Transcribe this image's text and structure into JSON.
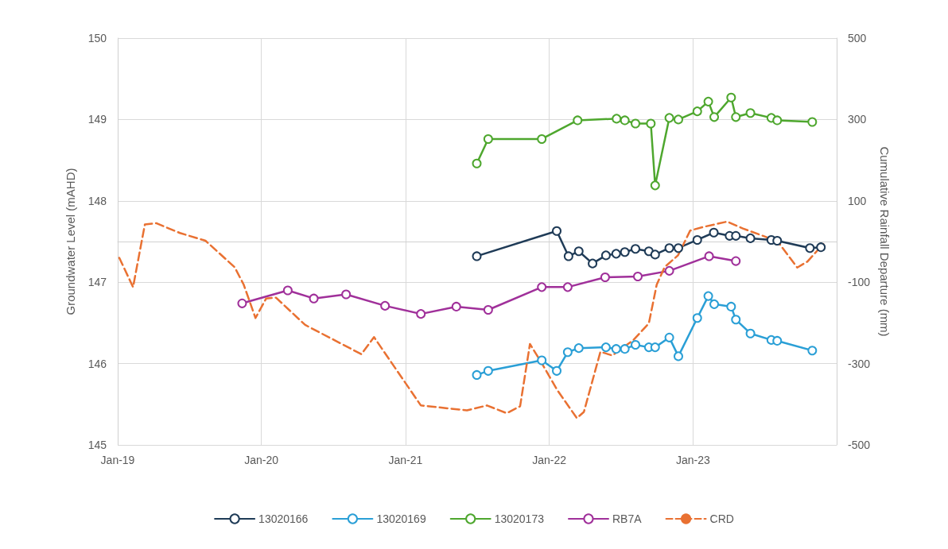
{
  "chart_data": {
    "type": "line",
    "ylabel": "Groundwater Level (mAHD)",
    "y2label": "Cumulative Rainfall Departure (mm)",
    "xlim": [
      "2019-01-01",
      "2024-01-01"
    ],
    "xticks": [
      {
        "value": "2019-01-01",
        "label": "Jan-19"
      },
      {
        "value": "2020-01-01",
        "label": "Jan-20"
      },
      {
        "value": "2021-01-01",
        "label": "Jan-21"
      },
      {
        "value": "2022-01-01",
        "label": "Jan-22"
      },
      {
        "value": "2023-01-01",
        "label": "Jan-23"
      }
    ],
    "ylim": [
      145,
      150
    ],
    "yticks": [
      145,
      146,
      147,
      148,
      149,
      150
    ],
    "y2lim": [
      -500,
      500
    ],
    "y2ticks": [
      -500,
      -300,
      -100,
      100,
      300,
      500
    ],
    "grid": true,
    "legend": "bottom",
    "marker": "circle",
    "series": [
      {
        "name": "13020166",
        "color": "#1f3b57",
        "x": [
          "2021-07-01",
          "2022-01-20",
          "2022-02-19",
          "2022-03-17",
          "2022-04-21",
          "2022-05-25",
          "2022-06-20",
          "2022-07-12",
          "2022-08-08",
          "2022-09-11",
          "2022-09-27",
          "2022-11-02",
          "2022-11-25",
          "2023-01-12",
          "2023-02-23",
          "2023-04-04",
          "2023-04-20",
          "2023-05-27",
          "2023-07-19",
          "2023-08-03",
          "2023-10-25",
          "2023-11-22"
        ],
        "values": [
          147.32,
          147.63,
          147.32,
          147.38,
          147.23,
          147.33,
          147.35,
          147.37,
          147.41,
          147.38,
          147.34,
          147.42,
          147.42,
          147.52,
          147.61,
          147.57,
          147.57,
          147.54,
          147.52,
          147.51,
          147.42,
          147.43
        ]
      },
      {
        "name": "13020169",
        "color": "#2a9fd6",
        "x": [
          "2021-07-01",
          "2021-07-30",
          "2021-12-13",
          "2022-01-20",
          "2022-02-17",
          "2022-03-17",
          "2022-05-25",
          "2022-06-20",
          "2022-07-12",
          "2022-08-08",
          "2022-09-11",
          "2022-09-27",
          "2022-11-02",
          "2022-11-25",
          "2023-01-12",
          "2023-02-09",
          "2023-02-24",
          "2023-04-08",
          "2023-04-20",
          "2023-05-27",
          "2023-07-19",
          "2023-08-03",
          "2023-10-31"
        ],
        "values": [
          145.86,
          145.91,
          146.04,
          145.91,
          146.14,
          146.19,
          146.2,
          146.18,
          146.18,
          146.23,
          146.2,
          146.2,
          146.32,
          146.09,
          146.56,
          146.83,
          146.73,
          146.7,
          146.54,
          146.37,
          146.29,
          146.28,
          146.16
        ]
      },
      {
        "name": "13020173",
        "color": "#4ea72e",
        "x": [
          "2021-07-01",
          "2021-07-30",
          "2021-12-13",
          "2022-03-14",
          "2022-06-21",
          "2022-07-12",
          "2022-08-08",
          "2022-09-16",
          "2022-09-27",
          "2022-11-02",
          "2022-11-25",
          "2023-01-12",
          "2023-02-09",
          "2023-02-24",
          "2023-04-08",
          "2023-04-20",
          "2023-05-27",
          "2023-07-19",
          "2023-08-03",
          "2023-10-31"
        ],
        "values": [
          148.46,
          148.76,
          148.76,
          148.99,
          149.01,
          148.99,
          148.95,
          148.95,
          148.19,
          149.02,
          149.0,
          149.1,
          149.22,
          149.03,
          149.27,
          149.03,
          149.08,
          149.02,
          148.99,
          148.97
        ]
      },
      {
        "name": "RB7A",
        "color": "#a0309a",
        "x": [
          "2019-11-13",
          "2020-03-08",
          "2020-05-13",
          "2020-08-03",
          "2020-11-10",
          "2021-02-09",
          "2021-05-10",
          "2021-07-30",
          "2021-12-13",
          "2022-02-17",
          "2022-05-23",
          "2022-08-14",
          "2022-11-02",
          "2023-02-11",
          "2023-04-20"
        ],
        "values": [
          146.74,
          146.9,
          146.8,
          146.85,
          146.71,
          146.61,
          146.7,
          146.66,
          146.94,
          146.94,
          147.06,
          147.07,
          147.14,
          147.32,
          147.26
        ]
      },
      {
        "name": "CRD",
        "color": "#e97132",
        "axis": "y2",
        "marker": "none",
        "line_style": "dashed",
        "x": [
          "2019-01-05",
          "2019-02-09",
          "2019-03-11",
          "2019-04-09",
          "2019-06-08",
          "2019-08-12",
          "2019-10-25",
          "2019-11-17",
          "2019-12-17",
          "2020-01-13",
          "2020-02-07",
          "2020-04-21",
          "2020-09-11",
          "2020-10-13",
          "2021-02-09",
          "2021-06-06",
          "2021-07-27",
          "2021-09-15",
          "2021-10-19",
          "2021-11-13",
          "2021-12-13",
          "2022-01-22",
          "2022-03-12",
          "2022-03-30",
          "2022-05-11",
          "2022-06-10",
          "2022-08-03",
          "2022-09-11",
          "2022-10-01",
          "2022-10-21",
          "2022-11-24",
          "2022-12-25",
          "2023-01-28",
          "2023-03-29",
          "2023-05-08",
          "2023-07-06",
          "2023-08-09",
          "2023-09-23",
          "2023-10-19",
          "2023-11-28"
        ],
        "values": [
          -40,
          -112,
          42,
          45,
          21,
          2,
          -63,
          -106,
          -188,
          -140,
          -138,
          -205,
          -277,
          -235,
          -403,
          -415,
          -403,
          -422,
          -405,
          -252,
          -299,
          -366,
          -434,
          -419,
          -271,
          -280,
          -242,
          -201,
          -106,
          -63,
          -34,
          27,
          36,
          49,
          32,
          11,
          -6,
          -64,
          -49,
          -6
        ]
      }
    ]
  }
}
